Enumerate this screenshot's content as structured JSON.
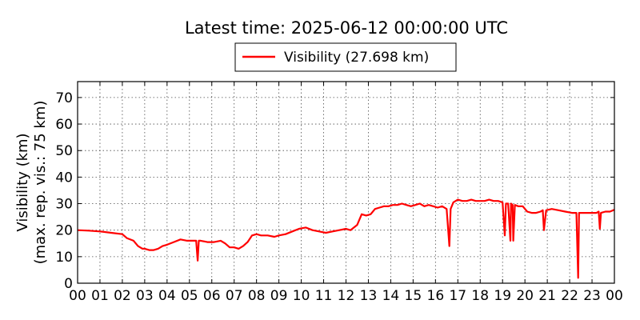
{
  "chart_data": {
    "type": "line",
    "title": "Latest time: 2025-06-12 00:00:00 UTC",
    "ylabel_line1": "Visibility (km)",
    "ylabel_line2": "(max. rep. vis.: 75 km)",
    "xlabel": "",
    "xlim": [
      0,
      24
    ],
    "ylim": [
      0,
      76
    ],
    "grid": true,
    "legend_position": "top-center",
    "x_tick_labels": [
      "00",
      "01",
      "02",
      "03",
      "04",
      "05",
      "06",
      "07",
      "08",
      "09",
      "10",
      "11",
      "12",
      "13",
      "14",
      "15",
      "16",
      "17",
      "18",
      "19",
      "20",
      "21",
      "22",
      "23",
      "00"
    ],
    "y_ticks": [
      0,
      10,
      20,
      30,
      40,
      50,
      60,
      70
    ],
    "series": [
      {
        "name": "Visibility (27.698 km)",
        "color": "#ff0000",
        "x": [
          0.0,
          0.5,
          1.0,
          1.5,
          2.0,
          2.2,
          2.5,
          2.7,
          2.9,
          3.0,
          3.2,
          3.4,
          3.6,
          3.8,
          4.0,
          4.3,
          4.6,
          4.9,
          5.1,
          5.3,
          5.37,
          5.42,
          5.5,
          5.8,
          6.1,
          6.4,
          6.6,
          6.8,
          7.0,
          7.2,
          7.4,
          7.6,
          7.8,
          8.0,
          8.2,
          8.5,
          8.8,
          9.0,
          9.3,
          9.6,
          9.9,
          10.2,
          10.5,
          10.8,
          11.1,
          11.4,
          11.7,
          12.0,
          12.2,
          12.5,
          12.7,
          12.9,
          13.1,
          13.3,
          13.5,
          13.7,
          13.9,
          14.1,
          14.3,
          14.5,
          14.7,
          14.9,
          15.1,
          15.3,
          15.5,
          15.7,
          15.9,
          16.1,
          16.3,
          16.5,
          16.62,
          16.68,
          16.8,
          17.0,
          17.2,
          17.4,
          17.6,
          17.8,
          18.0,
          18.2,
          18.4,
          18.6,
          18.8,
          19.0,
          19.1,
          19.15,
          19.25,
          19.35,
          19.38,
          19.45,
          19.48,
          19.55,
          19.7,
          19.9,
          20.1,
          20.3,
          20.5,
          20.7,
          20.8,
          20.85,
          20.95,
          21.2,
          21.5,
          21.8,
          22.1,
          22.3,
          22.38,
          22.42,
          22.5,
          22.8,
          23.0,
          23.2,
          23.3,
          23.35,
          23.4,
          23.6,
          23.8,
          24.0
        ],
        "values": [
          20,
          19.8,
          19.5,
          19,
          18.5,
          17,
          16,
          14,
          13,
          13,
          12.5,
          12.5,
          13,
          14,
          14.5,
          15.5,
          16.5,
          16,
          16,
          16,
          8.5,
          16,
          16,
          15.5,
          15.5,
          16,
          15,
          13.5,
          13.5,
          13,
          14,
          15.5,
          18,
          18.5,
          18,
          18,
          17.5,
          18,
          18.5,
          19.5,
          20.5,
          21,
          20,
          19.5,
          19,
          19.5,
          20,
          20.5,
          20,
          22,
          26,
          25.5,
          26,
          28,
          28.5,
          29,
          29,
          29.5,
          29.5,
          30,
          29.5,
          29,
          29.5,
          30,
          29,
          29.5,
          29,
          28.5,
          29,
          28,
          14,
          28,
          30.5,
          31.5,
          31,
          31,
          31.5,
          31,
          31,
          31,
          31.5,
          31,
          31,
          30.5,
          18,
          30,
          30,
          16,
          30,
          29.5,
          16,
          29.5,
          29,
          29,
          27,
          26.5,
          26.5,
          27,
          27.5,
          20,
          27.5,
          28,
          27.5,
          27,
          26.5,
          26.5,
          2,
          26.5,
          26.5,
          26.5,
          26.5,
          26.5,
          27,
          20.5,
          26.5,
          27,
          27,
          27.7
        ]
      }
    ]
  }
}
